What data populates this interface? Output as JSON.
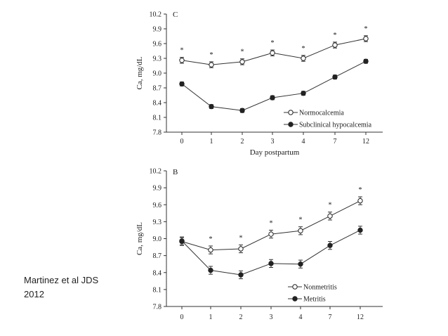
{
  "caption": {
    "line1": "Martinez et al JDS",
    "line2": "2012"
  },
  "chart_data": [
    {
      "type": "line",
      "panel_label": "C",
      "categories": [
        "0",
        "1",
        "2",
        "3",
        "4",
        "7",
        "12"
      ],
      "xlabel": "Day postpartum",
      "ylabel": "Ca, mg/dL",
      "ylim": [
        7.8,
        10.2
      ],
      "yticks": [
        "10.2",
        "9.9",
        "9.6",
        "9.3",
        "9.0",
        "8.7",
        "8.4",
        "8.1",
        "7.8"
      ],
      "significance_marker": "*",
      "significant_days": [
        "0",
        "1",
        "2",
        "3",
        "4",
        "7",
        "12"
      ],
      "legend_position": "bottom-right",
      "series": [
        {
          "name": "Normocalcemia",
          "marker": "open-circle",
          "values": [
            9.26,
            9.17,
            9.23,
            9.41,
            9.3,
            9.57,
            9.7
          ],
          "errors": [
            0.06,
            0.06,
            0.06,
            0.06,
            0.06,
            0.06,
            0.06
          ]
        },
        {
          "name": "Subclinical hypocalcemia",
          "marker": "filled-circle",
          "values": [
            8.78,
            8.32,
            8.24,
            8.5,
            8.59,
            8.92,
            9.24
          ],
          "errors": [
            0.04,
            0.04,
            0.04,
            0.04,
            0.04,
            0.04,
            0.04
          ]
        }
      ]
    },
    {
      "type": "line",
      "panel_label": "B",
      "categories": [
        "0",
        "1",
        "2",
        "3",
        "4",
        "7",
        "12"
      ],
      "xlabel": "",
      "ylabel": "Ca, mg/dL",
      "ylim": [
        7.8,
        10.2
      ],
      "yticks": [
        "10.2",
        "9.9",
        "9.6",
        "9.3",
        "9.0",
        "8.7",
        "8.4",
        "8.1",
        "7.8"
      ],
      "significance_marker": "*",
      "significant_days": [
        "1",
        "2",
        "3",
        "4",
        "7",
        "12"
      ],
      "legend_position": "bottom-right",
      "series": [
        {
          "name": "Nonmetritis",
          "marker": "open-circle",
          "values": [
            8.95,
            8.8,
            8.82,
            9.08,
            9.14,
            9.4,
            9.67
          ],
          "errors": [
            0.07,
            0.07,
            0.07,
            0.07,
            0.07,
            0.07,
            0.07
          ]
        },
        {
          "name": "Metritis",
          "marker": "filled-circle",
          "values": [
            8.96,
            8.44,
            8.36,
            8.56,
            8.55,
            8.88,
            9.15
          ],
          "errors": [
            0.07,
            0.07,
            0.07,
            0.07,
            0.07,
            0.07,
            0.07
          ]
        }
      ]
    }
  ]
}
